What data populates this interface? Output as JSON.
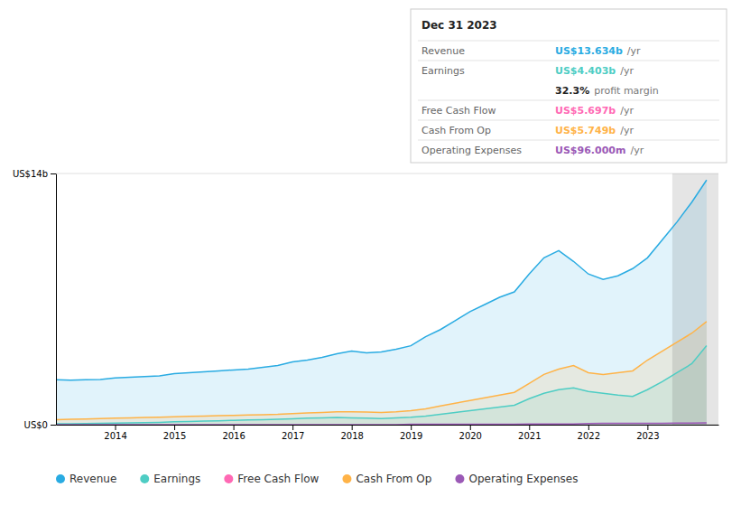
{
  "chart_data": {
    "type": "area",
    "x": [
      2013.0,
      2013.25,
      2013.5,
      2013.75,
      2014.0,
      2014.25,
      2014.5,
      2014.75,
      2015.0,
      2015.25,
      2015.5,
      2015.75,
      2016.0,
      2016.25,
      2016.5,
      2016.75,
      2017.0,
      2017.25,
      2017.5,
      2017.75,
      2018.0,
      2018.25,
      2018.5,
      2018.75,
      2019.0,
      2019.25,
      2019.5,
      2019.75,
      2020.0,
      2020.25,
      2020.5,
      2020.75,
      2021.0,
      2021.25,
      2021.5,
      2021.75,
      2022.0,
      2022.25,
      2022.5,
      2022.75,
      2023.0,
      2023.25,
      2023.5,
      2023.75,
      2024.0
    ],
    "series": [
      {
        "name": "Revenue",
        "color": "#29ABE2",
        "values": [
          2.5,
          2.48,
          2.5,
          2.52,
          2.6,
          2.65,
          2.68,
          2.72,
          2.85,
          2.9,
          2.95,
          3.0,
          3.05,
          3.1,
          3.2,
          3.3,
          3.5,
          3.6,
          3.75,
          3.95,
          4.1,
          4.0,
          4.05,
          4.2,
          4.4,
          4.9,
          5.3,
          5.8,
          6.3,
          6.7,
          7.1,
          7.4,
          8.4,
          9.3,
          9.7,
          9.1,
          8.4,
          8.1,
          8.3,
          8.7,
          9.3,
          10.3,
          11.3,
          12.4,
          13.634
        ]
      },
      {
        "name": "Earnings",
        "color": "#4ECDC4",
        "values": [
          0.05,
          0.05,
          0.06,
          0.07,
          0.09,
          0.1,
          0.11,
          0.13,
          0.16,
          0.18,
          0.2,
          0.22,
          0.24,
          0.26,
          0.28,
          0.3,
          0.33,
          0.36,
          0.38,
          0.4,
          0.38,
          0.36,
          0.34,
          0.38,
          0.42,
          0.48,
          0.58,
          0.68,
          0.78,
          0.88,
          0.98,
          1.08,
          1.45,
          1.75,
          1.95,
          2.05,
          1.85,
          1.75,
          1.65,
          1.58,
          1.95,
          2.4,
          2.9,
          3.4,
          4.403
        ]
      },
      {
        "name": "Free Cash Flow",
        "color": "#FF69B4",
        "values": [
          null,
          null,
          null,
          null,
          null,
          null,
          null,
          null,
          null,
          null,
          null,
          null,
          null,
          null,
          null,
          null,
          null,
          null,
          null,
          null,
          null,
          null,
          null,
          null,
          null,
          null,
          null,
          null,
          null,
          null,
          null,
          null,
          null,
          null,
          null,
          null,
          null,
          null,
          null,
          null,
          null,
          null,
          null,
          null,
          null
        ]
      },
      {
        "name": "Cash From Op",
        "color": "#FFB347",
        "values": [
          0.28,
          0.3,
          0.32,
          0.34,
          0.36,
          0.38,
          0.4,
          0.42,
          0.44,
          0.46,
          0.48,
          0.5,
          0.52,
          0.54,
          0.56,
          0.58,
          0.62,
          0.65,
          0.68,
          0.72,
          0.72,
          0.7,
          0.68,
          0.72,
          0.78,
          0.88,
          1.05,
          1.2,
          1.35,
          1.5,
          1.65,
          1.8,
          2.3,
          2.8,
          3.1,
          3.3,
          2.9,
          2.8,
          2.9,
          3.0,
          3.6,
          4.1,
          4.6,
          5.1,
          5.749
        ]
      },
      {
        "name": "Operating Expenses",
        "color": "#9B59B6",
        "values": [
          0.0,
          0.0,
          0.0,
          0.0,
          0.0,
          0.0,
          0.0,
          0.0,
          0.0,
          0.0,
          0.0,
          0.0,
          0.0,
          0.0,
          0.0,
          0.0,
          0.0,
          0.0,
          0.0,
          0.0,
          0.0,
          0.0,
          0.0,
          0.0,
          0.02,
          0.02,
          0.02,
          0.02,
          0.02,
          0.02,
          0.02,
          0.02,
          0.04,
          0.04,
          0.04,
          0.04,
          0.06,
          0.07,
          0.07,
          0.08,
          0.08,
          0.08,
          0.09,
          0.09,
          0.096
        ]
      }
    ],
    "xlim": [
      2013.0,
      2024.2
    ],
    "xticks": [
      2014,
      2015,
      2016,
      2017,
      2018,
      2019,
      2020,
      2021,
      2022,
      2023
    ],
    "ylim": [
      0,
      14
    ],
    "yticks": [
      {
        "value": 0,
        "label": "US$0"
      },
      {
        "value": 14,
        "label": "US$14b"
      }
    ],
    "grid": true,
    "legend": "bottom",
    "shaded_x": [
      2023.42,
      2024.2
    ],
    "info_box": {
      "title": "Dec 31 2023",
      "rows": [
        {
          "label": "Revenue",
          "value": "US$13.634b",
          "suffix": "/yr",
          "color": "#29ABE2"
        },
        {
          "label": "Earnings",
          "value": "US$4.403b",
          "suffix": "/yr",
          "color": "#4ECDC4"
        },
        {
          "value": "32.3%",
          "suffix": "profit margin"
        },
        {
          "label": "Free Cash Flow",
          "value": "US$5.697b",
          "suffix": "/yr",
          "color": "#FF69B4"
        },
        {
          "label": "Cash From Op",
          "value": "US$5.749b",
          "suffix": "/yr",
          "color": "#FFB347"
        },
        {
          "label": "Operating Expenses",
          "value": "US$96.000m",
          "suffix": "/yr",
          "color": "#9B59B6"
        }
      ]
    }
  }
}
